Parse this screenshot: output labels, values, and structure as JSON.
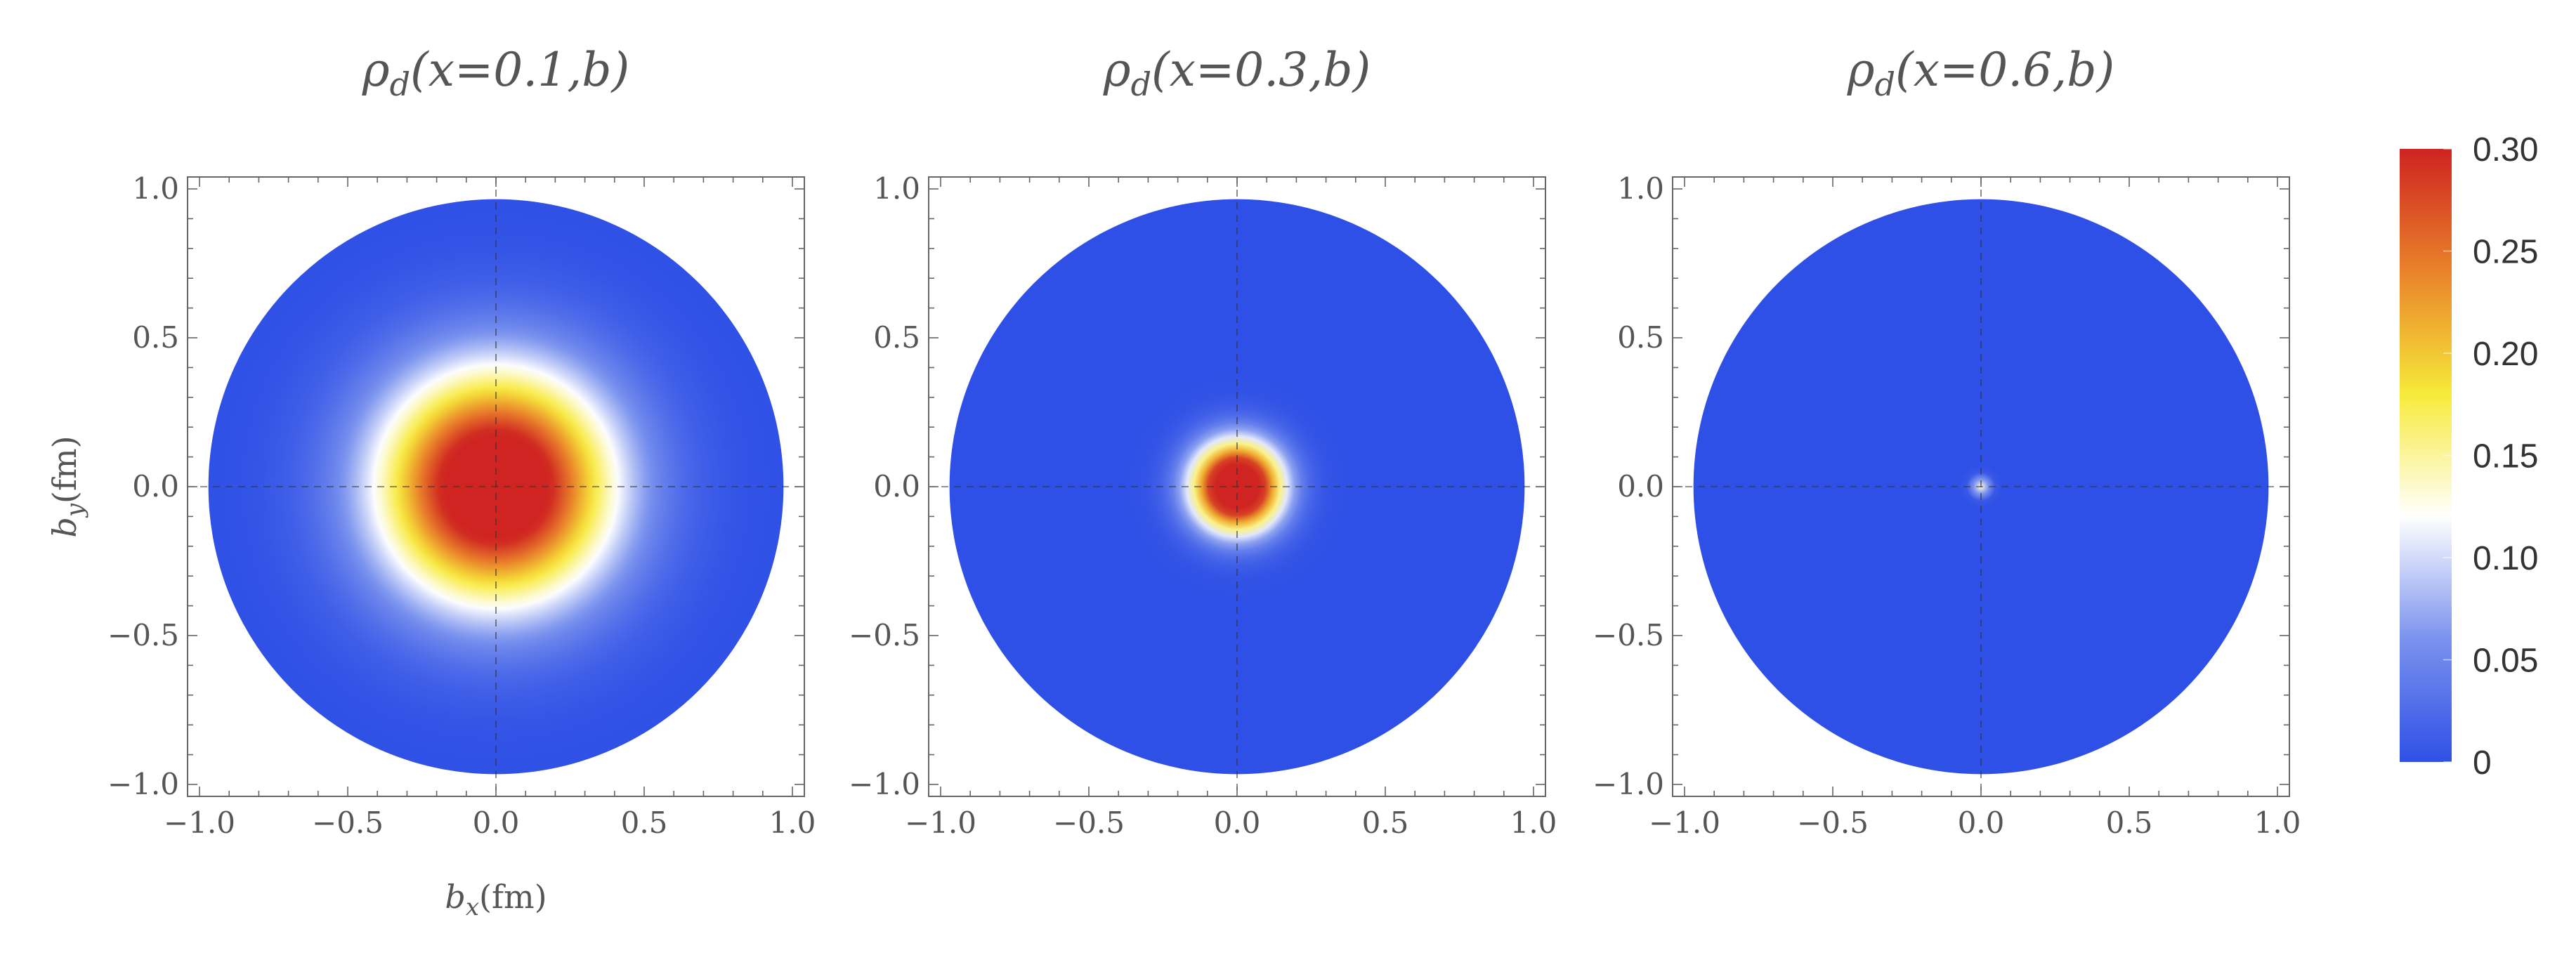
{
  "chart_data": [
    {
      "type": "heatmap",
      "title": {
        "symbol": "ρ",
        "sub": "d",
        "args": "(x=0.1,b)"
      },
      "xlabel": {
        "var": "b",
        "sub": "x",
        "unit": "(fm)"
      },
      "ylabel": {
        "var": "b",
        "sub": "y",
        "unit": "(fm)"
      },
      "xlim": [
        -1.0,
        1.0
      ],
      "ylim": [
        -1.0,
        1.0
      ],
      "domain_radius": 0.97,
      "peak_value": 0.38,
      "width_scale": 0.27,
      "xticks": [
        "−1.0",
        "−0.5",
        "0.0",
        "0.5",
        "1.0"
      ],
      "yticks": [
        "1.0",
        "0.5",
        "0.0",
        "−0.5",
        "−1.0"
      ],
      "grid": "dashed center lines"
    },
    {
      "type": "heatmap",
      "title": {
        "symbol": "ρ",
        "sub": "d",
        "args": "(x=0.3,b)"
      },
      "xlabel": null,
      "ylabel": null,
      "xlim": [
        -1.0,
        1.0
      ],
      "ylim": [
        -1.0,
        1.0
      ],
      "domain_radius": 0.97,
      "peak_value": 0.45,
      "width_scale": 0.1,
      "xticks": [
        "−1.0",
        "−0.5",
        "0.0",
        "0.5",
        "1.0"
      ],
      "yticks": [
        "1.0",
        "0.5",
        "0.0",
        "−0.5",
        "−1.0"
      ],
      "grid": "dashed center lines"
    },
    {
      "type": "heatmap",
      "title": {
        "symbol": "ρ",
        "sub": "d",
        "args": "(x=0.6,b)"
      },
      "xlabel": null,
      "ylabel": null,
      "xlim": [
        -1.0,
        1.0
      ],
      "ylim": [
        -1.0,
        1.0
      ],
      "domain_radius": 0.97,
      "peak_value": 0.13,
      "width_scale": 0.02,
      "xticks": [
        "−1.0",
        "−0.5",
        "0.0",
        "0.5",
        "1.0"
      ],
      "yticks": [
        "1.0",
        "0.5",
        "0.0",
        "−0.5",
        "−1.0"
      ],
      "grid": "dashed center lines"
    }
  ],
  "colorbar": {
    "range": [
      0,
      0.3
    ],
    "ticks": [
      "0.30",
      "0.25",
      "0.20",
      "0.15",
      "0.10",
      "0.05",
      "0"
    ],
    "tick_values": [
      0.3,
      0.25,
      0.2,
      0.15,
      0.1,
      0.05,
      0
    ],
    "colors": [
      "#2f50e6",
      "#7a92ee",
      "#ffffff",
      "#f7ea3a",
      "#e9822a",
      "#cf2421"
    ]
  }
}
